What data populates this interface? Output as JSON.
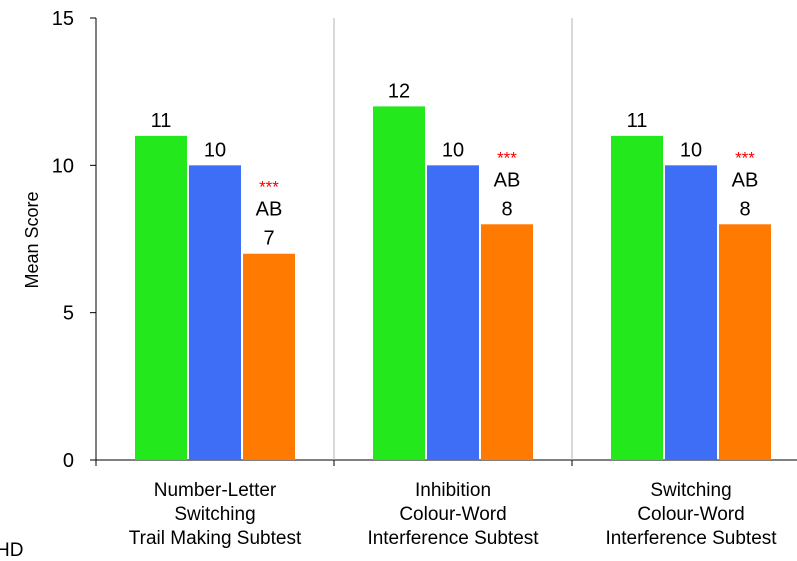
{
  "chart_data": {
    "type": "bar",
    "ylabel": "Mean Score",
    "ylim": [
      0,
      15
    ],
    "yticks": [
      0,
      5,
      10,
      15
    ],
    "grid": false,
    "separators": true,
    "categories": [
      [
        "Number-Letter",
        "Switching",
        "Trail Making Subtest"
      ],
      [
        "Inhibition",
        "Colour-Word",
        "Interference Subtest"
      ],
      [
        "Switching",
        "Colour-Word",
        "Interference Subtest"
      ]
    ],
    "series": [
      {
        "color": "#22e81c",
        "values": [
          11,
          12,
          11
        ],
        "labels": [
          "11",
          "12",
          "11"
        ],
        "significance": [
          "",
          "",
          ""
        ],
        "group_letters": [
          "",
          "",
          ""
        ]
      },
      {
        "color": "#3d6ef5",
        "values": [
          10,
          10,
          10
        ],
        "labels": [
          "10",
          "10",
          "10"
        ],
        "significance": [
          "",
          "",
          ""
        ],
        "group_letters": [
          "",
          "",
          ""
        ]
      },
      {
        "color": "#ff7a00",
        "values": [
          7,
          8,
          8
        ],
        "labels": [
          "7",
          "8",
          "8"
        ],
        "significance": [
          "***",
          "***",
          "***"
        ],
        "group_letters": [
          "AB",
          "AB",
          "AB"
        ]
      }
    ],
    "significance_color": "#ff0000",
    "clipped_left_text": "HD"
  }
}
